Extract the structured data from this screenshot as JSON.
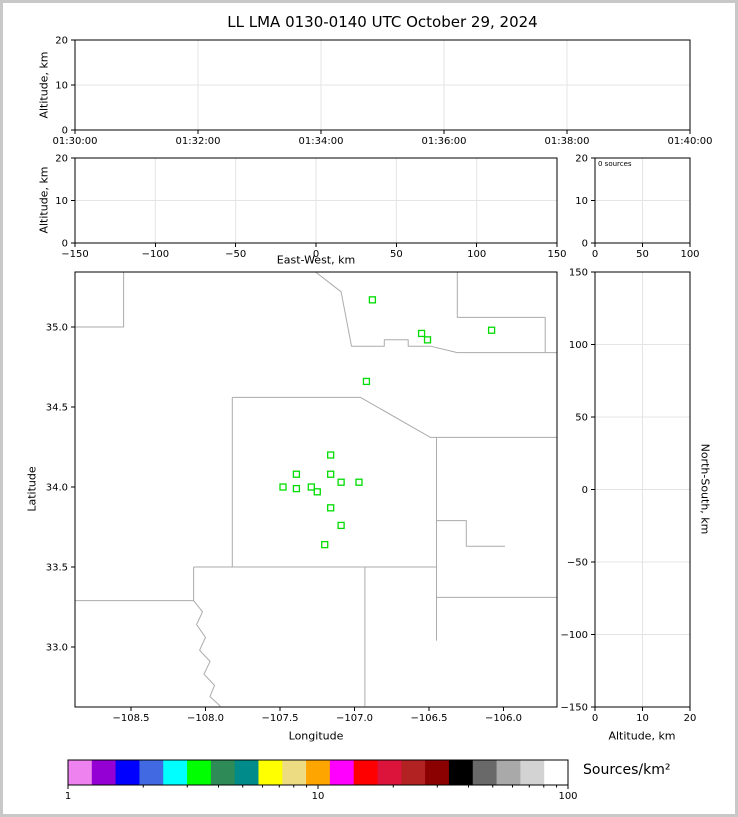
{
  "title": "LL LMA 0130-0140 UTC October 29, 2024",
  "panels": {
    "time_height": {
      "ylabel": "Altitude, km",
      "x_tick_labels": [
        "01:30:00",
        "01:32:00",
        "01:34:00",
        "01:36:00",
        "01:38:00",
        "01:40:00"
      ],
      "x_tick_values": [
        0,
        2,
        4,
        6,
        8,
        10
      ],
      "x_range": [
        0,
        10
      ],
      "y_tick_labels": [
        "0",
        "10",
        "20"
      ],
      "y_tick_values": [
        0,
        10,
        20
      ],
      "y_range": [
        0,
        20
      ]
    },
    "ew_height": {
      "xlabel": "East-West, km",
      "ylabel": "Altitude, km",
      "x_tick_labels": [
        "−150",
        "−100",
        "−50",
        "0",
        "50",
        "100",
        "150"
      ],
      "x_tick_values": [
        -150,
        -100,
        -50,
        0,
        50,
        100,
        150
      ],
      "x_range": [
        -150,
        150
      ],
      "y_tick_labels": [
        "0",
        "10",
        "20"
      ],
      "y_tick_values": [
        0,
        10,
        20
      ],
      "y_range": [
        0,
        20
      ]
    },
    "alt_histogram": {
      "annotation": "0 sources",
      "x_tick_labels": [
        "0",
        "50",
        "100"
      ],
      "x_tick_values": [
        0,
        50,
        100
      ],
      "x_range": [
        0,
        100
      ],
      "y_tick_labels": [
        "0",
        "10",
        "20"
      ],
      "y_tick_values": [
        0,
        10,
        20
      ],
      "y_range": [
        0,
        20
      ]
    },
    "plan_view": {
      "xlabel": "Longitude",
      "ylabel": "Latitude",
      "x_tick_labels": [
        "−108.5",
        "−108.0",
        "−107.5",
        "−107.0",
        "−106.5",
        "−106.0"
      ],
      "x_tick_values": [
        -108.5,
        -108.0,
        -107.5,
        -107.0,
        -106.5,
        -106.0
      ],
      "x_range": [
        -108.876,
        -105.641
      ],
      "y_tick_labels": [
        "33.0",
        "33.5",
        "34.0",
        "34.5",
        "35.0"
      ],
      "y_tick_values": [
        33.0,
        33.5,
        34.0,
        34.5,
        35.0
      ],
      "y_range": [
        32.625,
        35.344
      ]
    },
    "ns_height": {
      "xlabel": "Altitude, km",
      "ylabel": "North-South, km",
      "x_tick_labels": [
        "0",
        "10",
        "20"
      ],
      "x_tick_values": [
        0,
        10,
        20
      ],
      "x_range": [
        0,
        20
      ],
      "y_tick_labels": [
        "−150",
        "−100",
        "−50",
        "0",
        "50",
        "100",
        "150"
      ],
      "y_tick_values": [
        -150,
        -100,
        -50,
        0,
        50,
        100,
        150
      ],
      "y_range": [
        -150,
        150
      ]
    }
  },
  "colorbar": {
    "label": "Sources/km²",
    "scale": "log",
    "range": [
      1,
      100
    ],
    "tick_labels": [
      "1",
      "10",
      "100"
    ],
    "tick_values": [
      1,
      10,
      100
    ],
    "colors": [
      "#EE82EE",
      "#9400D3",
      "#0000FF",
      "#4169E1",
      "#00FFFF",
      "#00FF00",
      "#2E8B57",
      "#008B8B",
      "#FFFF00",
      "#EEDC82",
      "#FFA500",
      "#FF00FF",
      "#FF0000",
      "#DC143C",
      "#B22222",
      "#8B0000",
      "#000000",
      "#696969",
      "#A9A9A9",
      "#D3D3D3",
      "#FFFFFF"
    ]
  },
  "chart_data": {
    "type": "scatter",
    "title": "LL LMA 0130-0140 UTC October 29, 2024",
    "source_count_annotation": "0 sources",
    "station_marker_color": "#00DC00",
    "boundary_color": "#ababab",
    "map_lon_range": [
      -108.876,
      -105.641
    ],
    "map_lat_range": [
      32.625,
      35.344
    ],
    "stations_lonlat": [
      [
        -106.88,
        35.17
      ],
      [
        -106.55,
        34.96
      ],
      [
        -106.51,
        34.92
      ],
      [
        -106.08,
        34.98
      ],
      [
        -106.92,
        34.66
      ],
      [
        -107.16,
        34.2
      ],
      [
        -107.39,
        34.08
      ],
      [
        -107.16,
        34.08
      ],
      [
        -107.48,
        34.0
      ],
      [
        -107.39,
        33.99
      ],
      [
        -107.29,
        34.0
      ],
      [
        -107.09,
        34.03
      ],
      [
        -106.97,
        34.03
      ],
      [
        -107.25,
        33.97
      ],
      [
        -107.16,
        33.87
      ],
      [
        -107.09,
        33.76
      ],
      [
        -107.2,
        33.64
      ]
    ],
    "county_boundaries_lonlat": [
      [
        [
          -108.88,
          35.0
        ],
        [
          -108.55,
          35.0
        ],
        [
          -108.55,
          35.35
        ]
      ],
      [
        [
          -107.27,
          35.35
        ],
        [
          -107.09,
          35.22
        ],
        [
          -107.02,
          34.88
        ],
        [
          -106.8,
          34.88
        ],
        [
          -106.8,
          34.92
        ],
        [
          -106.64,
          34.92
        ],
        [
          -106.64,
          34.88
        ],
        [
          -106.49,
          34.88
        ]
      ],
      [
        [
          -106.31,
          35.35
        ],
        [
          -106.31,
          35.06
        ],
        [
          -105.72,
          35.06
        ],
        [
          -105.72,
          34.84
        ]
      ],
      [
        [
          -106.49,
          34.88
        ],
        [
          -106.31,
          34.84
        ],
        [
          -105.64,
          34.84
        ]
      ],
      [
        [
          -107.82,
          34.56
        ],
        [
          -106.96,
          34.56
        ],
        [
          -106.49,
          34.31
        ],
        [
          -105.64,
          34.31
        ]
      ],
      [
        [
          -107.82,
          34.56
        ],
        [
          -107.82,
          33.5
        ]
      ],
      [
        [
          -108.08,
          33.5
        ],
        [
          -106.45,
          33.5
        ]
      ],
      [
        [
          -108.88,
          33.29
        ],
        [
          -108.08,
          33.29
        ]
      ],
      [
        [
          -108.08,
          33.5
        ],
        [
          -108.08,
          33.29
        ],
        [
          -108.02,
          33.22
        ],
        [
          -108.06,
          33.14
        ],
        [
          -108.0,
          33.06
        ],
        [
          -108.04,
          32.98
        ],
        [
          -107.97,
          32.91
        ],
        [
          -108.01,
          32.83
        ],
        [
          -107.94,
          32.76
        ],
        [
          -107.97,
          32.69
        ],
        [
          -107.9,
          32.63
        ]
      ],
      [
        [
          -106.93,
          33.5
        ],
        [
          -106.93,
          32.63
        ]
      ],
      [
        [
          -106.45,
          34.31
        ],
        [
          -106.45,
          33.04
        ]
      ],
      [
        [
          -106.45,
          33.79
        ],
        [
          -106.25,
          33.79
        ],
        [
          -106.25,
          33.63
        ],
        [
          -105.99,
          33.63
        ]
      ],
      [
        [
          -106.45,
          33.31
        ],
        [
          -105.64,
          33.31
        ]
      ]
    ]
  }
}
